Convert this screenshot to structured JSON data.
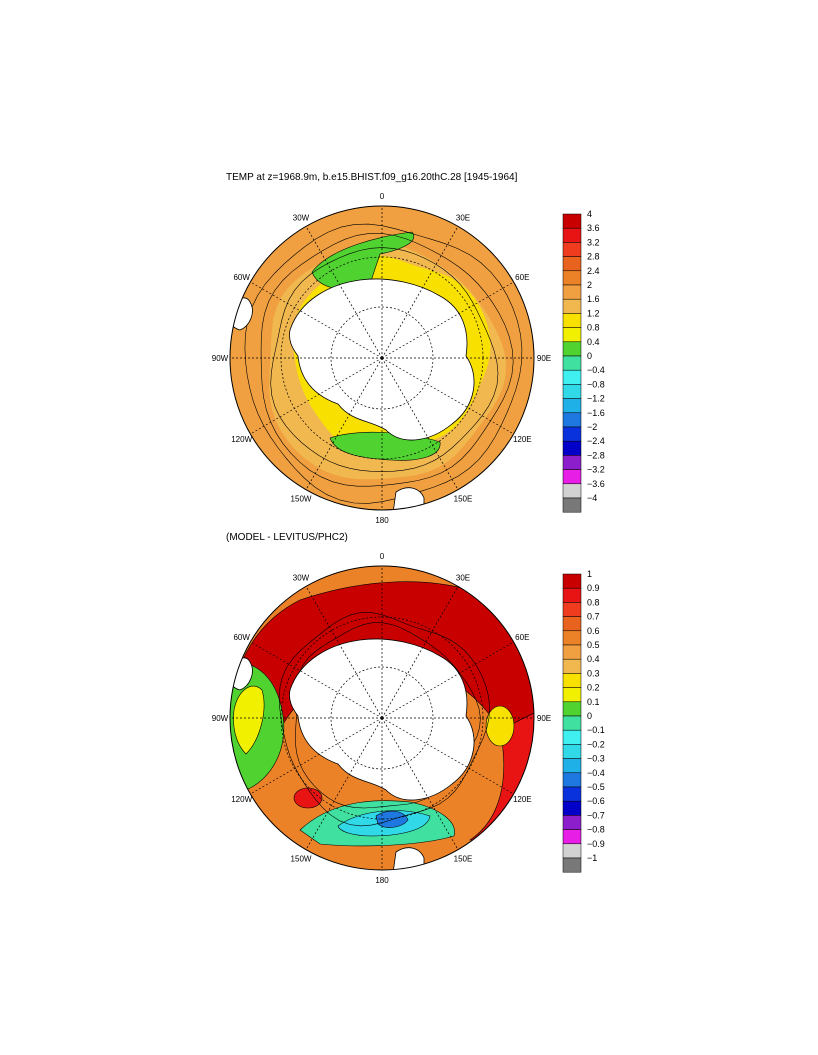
{
  "panels": [
    {
      "id": "top",
      "title": "TEMP at z=1968.9m, b.e15.BHIST.f09_g16.20thC.28 [1945-1964]",
      "colorbar": {
        "labels": [
          "4",
          "3.6",
          "3.2",
          "2.8",
          "2.4",
          "2",
          "1.6",
          "1.2",
          "0.8",
          "0.4",
          "0",
          "−0.4",
          "−0.8",
          "−1.2",
          "−1.6",
          "−2",
          "−2.4",
          "−2.8",
          "−3.2",
          "−3.6",
          "−4"
        ],
        "colors": [
          "#c80000",
          "#e81414",
          "#f03c1e",
          "#e8641e",
          "#ec8228",
          "#f0a040",
          "#f2b850",
          "#f8e000",
          "#f0f000",
          "#50d230",
          "#40e0a0",
          "#40f0f0",
          "#30d8e8",
          "#20b0e8",
          "#1e78e0",
          "#0a32dc",
          "#0000c8",
          "#8c1ecc",
          "#e61ee6",
          "#d2d2d2",
          "#787878"
        ]
      },
      "lon_labels": [
        "0",
        "30E",
        "60E",
        "90E",
        "120E",
        "150E",
        "180",
        "150W",
        "120W",
        "90W",
        "60W",
        "30W"
      ]
    },
    {
      "id": "bottom",
      "title": "(MODEL - LEVITUS/PHC2)",
      "colorbar": {
        "labels": [
          "1",
          "0.9",
          "0.8",
          "0.7",
          "0.6",
          "0.5",
          "0.4",
          "0.3",
          "0.2",
          "0.1",
          "0",
          "−0.1",
          "−0.2",
          "−0.3",
          "−0.4",
          "−0.5",
          "−0.6",
          "−0.7",
          "−0.8",
          "−0.9",
          "−1"
        ],
        "colors": [
          "#c80000",
          "#e81414",
          "#f03c1e",
          "#e8641e",
          "#ec8228",
          "#f0a040",
          "#f2b850",
          "#f8e000",
          "#f0f000",
          "#50d230",
          "#40e0a0",
          "#40f0f0",
          "#30d8e8",
          "#20b0e8",
          "#1e78e0",
          "#0a32dc",
          "#0000c8",
          "#8c1ecc",
          "#e61ee6",
          "#d2d2d2",
          "#787878"
        ]
      },
      "lon_labels": [
        "0",
        "30E",
        "60E",
        "90E",
        "120E",
        "150E",
        "180",
        "150W",
        "120W",
        "90W",
        "60W",
        "30W"
      ]
    }
  ]
}
